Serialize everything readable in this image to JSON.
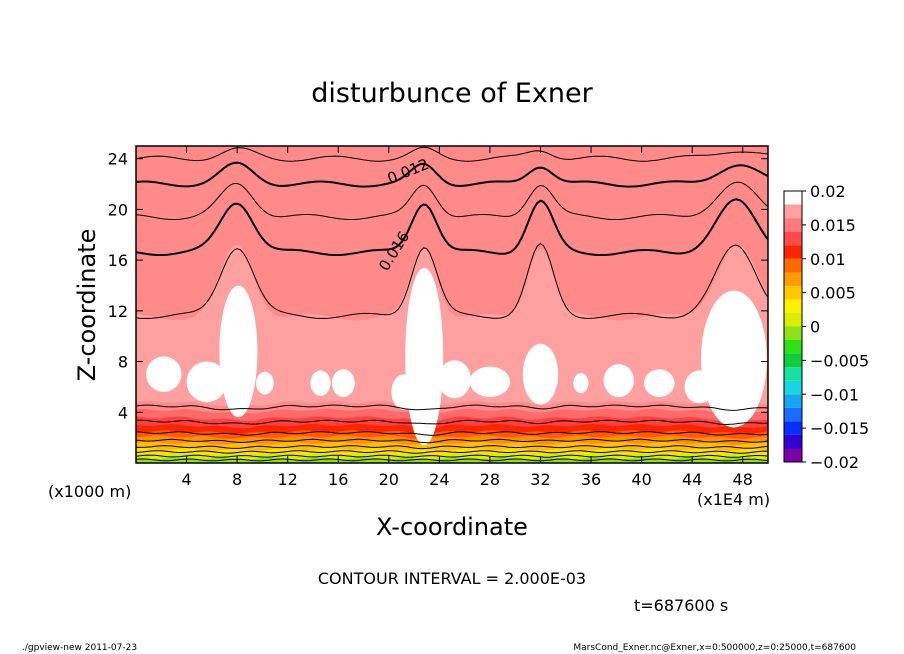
{
  "chart_data": {
    "type": "heatmap",
    "title": "disturbunce of Exner",
    "xlabel": "X-coordinate",
    "ylabel": "Z-coordinate",
    "x_unit_note": "(x1E4 m)",
    "y_unit_note": "(x1000 m)",
    "xlim": [
      0,
      50
    ],
    "ylim": [
      0,
      25
    ],
    "x_ticks": [
      4,
      8,
      12,
      16,
      20,
      24,
      28,
      32,
      36,
      40,
      44,
      48
    ],
    "y_ticks": [
      4,
      8,
      12,
      16,
      20,
      24
    ],
    "contour_interval_text": "CONTOUR INTERVAL = 2.000E-03",
    "time_text": "t=687600 s",
    "contour_labels": [
      "0.012",
      "0.016"
    ],
    "colorbar": {
      "range": [
        -0.02,
        0.02
      ],
      "tick_labels": [
        "0.02",
        "0.015",
        "0.01",
        "0.005",
        "0",
        "−0.005",
        "−0.01",
        "−0.015",
        "−0.02"
      ],
      "tick_values": [
        0.02,
        0.015,
        0.01,
        0.005,
        0,
        -0.005,
        -0.01,
        -0.015,
        -0.02
      ],
      "colors": [
        "#7a00a8",
        "#3500d0",
        "#0b2cff",
        "#1a6cff",
        "#17a6f0",
        "#18d6e0",
        "#19e0a0",
        "#12cc3a",
        "#2ee018",
        "#8ee018",
        "#d8f000",
        "#fff000",
        "#ffc800",
        "#ff9a00",
        "#ff6a00",
        "#ff2400",
        "#ff4a4a",
        "#ff7a7a",
        "#ffa0a0",
        "#ffffff"
      ]
    }
  },
  "footer": {
    "left": "./gpview-new   2011-07-23",
    "right": "MarsCond_Exner.nc@Exner,x=0:500000,z=0:25000,t=687600"
  }
}
